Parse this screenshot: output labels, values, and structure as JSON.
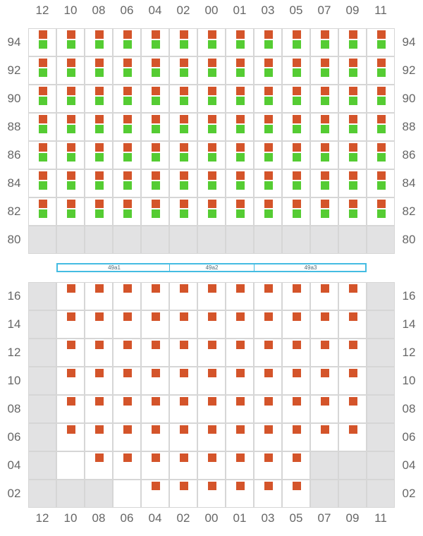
{
  "colors": {
    "orange": "#d4542a",
    "green": "#55cc33",
    "empty": "#e2e2e3",
    "grid": "#d6d6d6",
    "strip_border": "#44bce2",
    "label": "#666666"
  },
  "columns": [
    "12",
    "10",
    "08",
    "06",
    "04",
    "02",
    "00",
    "01",
    "03",
    "05",
    "07",
    "09",
    "11"
  ],
  "upper_block": {
    "rows": [
      "94",
      "92",
      "90",
      "88",
      "86",
      "84",
      "82",
      "80"
    ],
    "row_states": [
      "ggggggggggggg",
      "ggggggggggggg",
      "ggggggggggggg",
      "ggggggggggggg",
      "ggggggggggggg",
      "ggggggggggggg",
      "ggggggggggggg",
      "eeeeeeeeeeeee"
    ]
  },
  "strip": {
    "segments": [
      {
        "label": "49a1",
        "span": 4
      },
      {
        "label": "49a2",
        "span": 3
      },
      {
        "label": "49a3",
        "span": 4
      }
    ]
  },
  "lower_block": {
    "rows": [
      "16",
      "14",
      "12",
      "10",
      "08",
      "06",
      "04",
      "02"
    ],
    "row_states": [
      "eoooooooooooe",
      "eoooooooooooe",
      "eoooooooooooe",
      "eoooooooooooe",
      "eoooooooooooe",
      "eoooooooooooe",
      "ewooooooooeee",
      "eeewooooooeee"
    ]
  }
}
